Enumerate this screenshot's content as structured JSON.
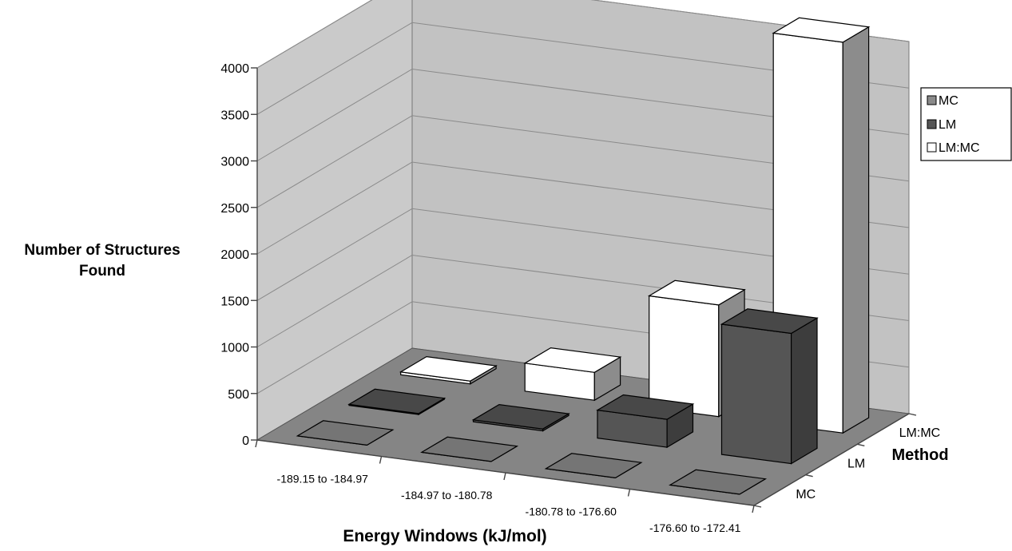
{
  "chart_data": {
    "type": "bar",
    "subtype": "3d-column",
    "title": "",
    "categories": [
      "-189.15 to -184.97",
      "-184.97 to -180.78",
      "-180.78 to -176.60",
      "-176.60 to -172.41"
    ],
    "series": [
      {
        "name": "MC",
        "values": [
          0,
          0,
          0,
          0
        ],
        "color": "#8a8a8a"
      },
      {
        "name": "LM",
        "values": [
          10,
          20,
          300,
          1400
        ],
        "color": "#555555"
      },
      {
        "name": "LM:MC",
        "values": [
          30,
          300,
          1200,
          4200
        ],
        "color": "#ffffff"
      }
    ],
    "xlabel": "Energy Windows (kJ/mol)",
    "ylabel_lines": [
      "Number of Structures",
      "Found"
    ],
    "zlabel": "Method",
    "depth_labels": [
      "MC",
      "LM",
      "LM:MC"
    ],
    "yticks": [
      "0",
      "500",
      "1000",
      "1500",
      "2000",
      "2500",
      "3000",
      "3500",
      "4000"
    ],
    "ylim": [
      0,
      4000
    ],
    "grid": true,
    "legend_position": "right"
  }
}
